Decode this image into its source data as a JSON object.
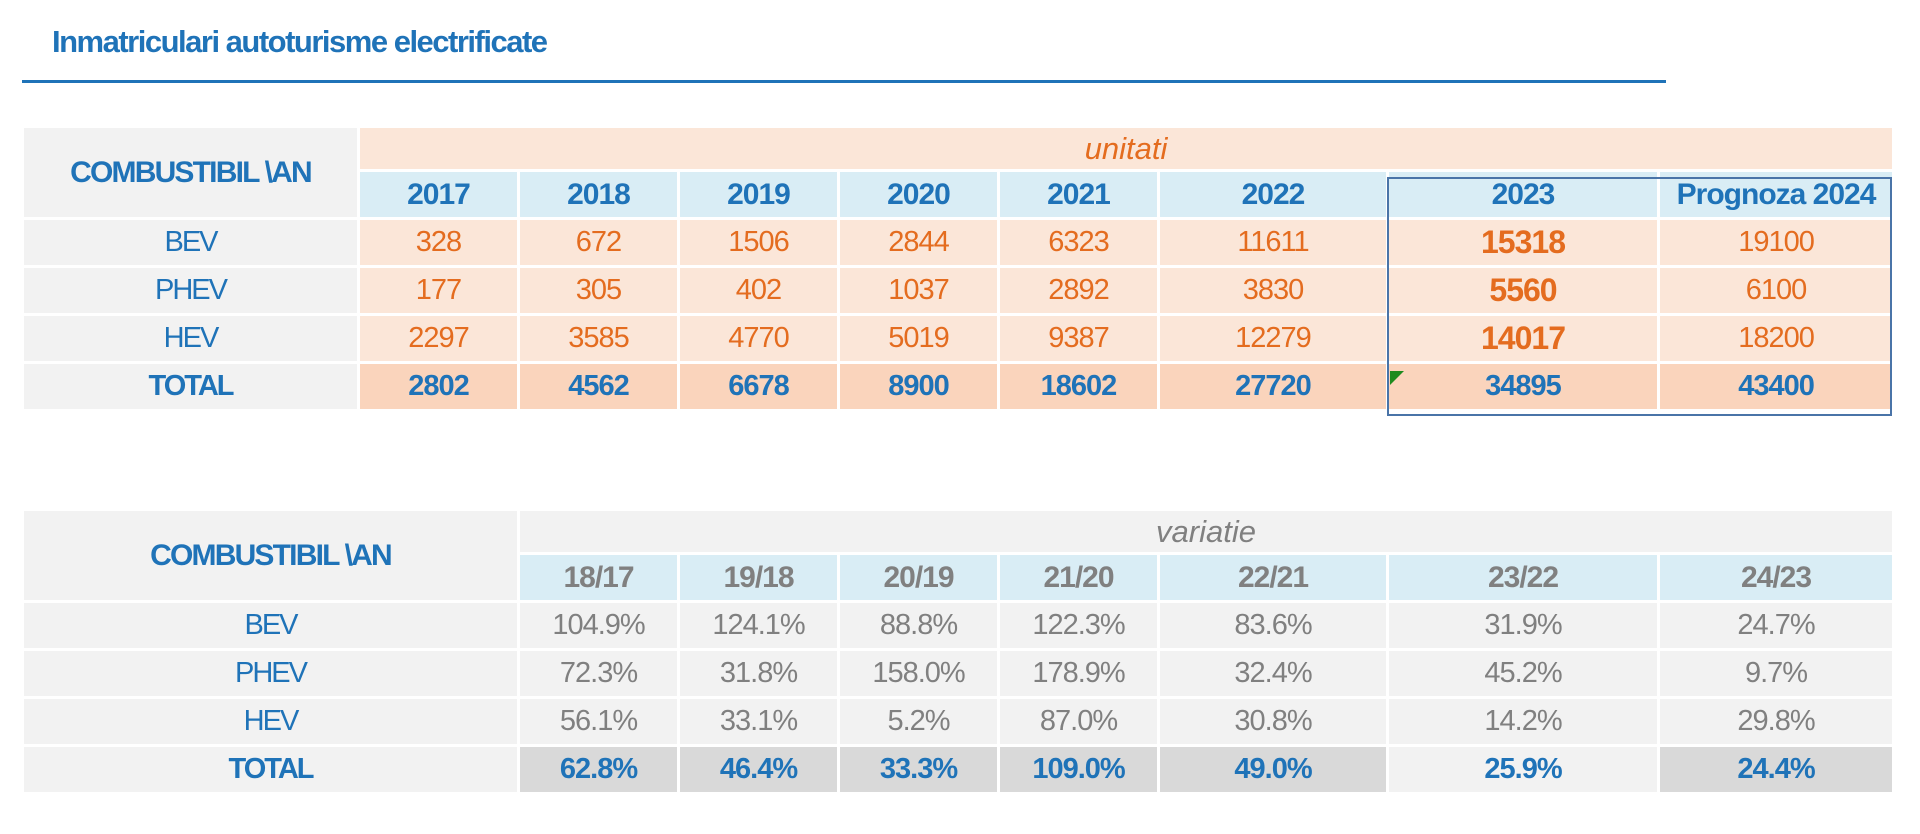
{
  "title": "Inmatriculari autoturisme electrificate",
  "colors": {
    "blue": "#1f73b8",
    "orange": "#e46c1f",
    "grey": "#808080",
    "highlight_border": "#4a74a8"
  },
  "chart_data": [
    {
      "type": "table",
      "corner_label": "COMBUSTIBIL \\AN",
      "group_header": "unitati",
      "columns": [
        "2017",
        "2018",
        "2019",
        "2020",
        "2021",
        "2022",
        "2023",
        "Prognoza 2024"
      ],
      "rows": [
        {
          "label": "BEV",
          "values": [
            "328",
            "672",
            "1506",
            "2844",
            "6323",
            "11611",
            "15318",
            "19100"
          ]
        },
        {
          "label": "PHEV",
          "values": [
            "177",
            "305",
            "402",
            "1037",
            "2892",
            "3830",
            "5560",
            "6100"
          ]
        },
        {
          "label": "HEV",
          "values": [
            "2297",
            "3585",
            "4770",
            "5019",
            "9387",
            "12279",
            "14017",
            "18200"
          ]
        },
        {
          "label": "TOTAL",
          "values": [
            "2802",
            "4562",
            "6678",
            "8900",
            "18602",
            "27720",
            "34895",
            "43400"
          ]
        }
      ]
    },
    {
      "type": "table",
      "corner_label": "COMBUSTIBIL \\AN",
      "group_header": "variatie",
      "columns": [
        "18/17",
        "19/18",
        "20/19",
        "21/20",
        "22/21",
        "23/22",
        "24/23"
      ],
      "rows": [
        {
          "label": "BEV",
          "values": [
            "104.9%",
            "124.1%",
            "88.8%",
            "122.3%",
            "83.6%",
            "31.9%",
            "24.7%"
          ]
        },
        {
          "label": "PHEV",
          "values": [
            "72.3%",
            "31.8%",
            "158.0%",
            "178.9%",
            "32.4%",
            "45.2%",
            "9.7%"
          ]
        },
        {
          "label": "HEV",
          "values": [
            "56.1%",
            "33.1%",
            "5.2%",
            "87.0%",
            "30.8%",
            "14.2%",
            "29.8%"
          ]
        },
        {
          "label": "TOTAL",
          "values": [
            "62.8%",
            "46.4%",
            "33.3%",
            "109.0%",
            "49.0%",
            "25.9%",
            "24.4%"
          ]
        }
      ]
    }
  ]
}
